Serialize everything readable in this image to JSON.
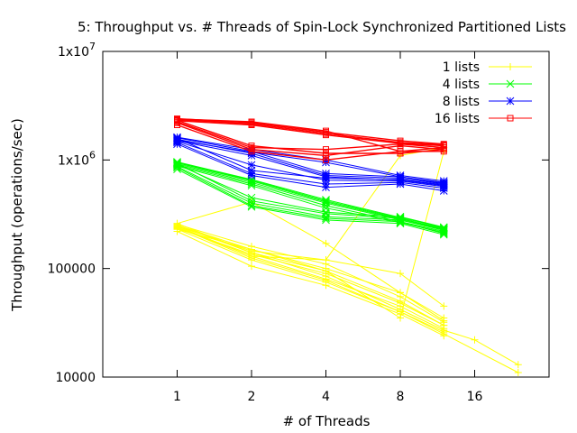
{
  "chart_data": {
    "type": "line",
    "title": "5: Throughput vs. # Threads of Spin-Lock Synchronized Partitioned Lists",
    "xlabel": "# of Threads",
    "ylabel": "Throughput (operations/sec)",
    "x_scale": "log2",
    "y_scale": "log10",
    "x_ticks": [
      {
        "value": 1,
        "label": "1"
      },
      {
        "value": 2,
        "label": "2"
      },
      {
        "value": 4,
        "label": "4"
      },
      {
        "value": 8,
        "label": "8"
      },
      {
        "value": 16,
        "label": "16"
      }
    ],
    "y_ticks": [
      {
        "value": 10000,
        "label": "10000",
        "sup": ""
      },
      {
        "value": 100000,
        "label": "100000",
        "sup": ""
      },
      {
        "value": 1000000,
        "label": "1x10",
        "sup": "6"
      },
      {
        "value": 10000000,
        "label": "1x10",
        "sup": "7"
      }
    ],
    "xlim": [
      0.5,
      32
    ],
    "ylim": [
      10000,
      10000000
    ],
    "grid": false,
    "legend_position": "top-right",
    "series": [
      {
        "name": "1 lists",
        "color": "#ffff00",
        "marker": "plus",
        "runs": [
          {
            "x": [
              1,
              2,
              4,
              8,
              12
            ],
            "y": [
              260000,
              140000,
              95000,
              50000,
              30000
            ]
          },
          {
            "x": [
              1,
              2,
              4,
              8,
              12
            ],
            "y": [
              250000,
              150000,
              100000,
              60000,
              35000
            ]
          },
          {
            "x": [
              1,
              2,
              4,
              8,
              12
            ],
            "y": [
              240000,
              130000,
              80000,
              45000,
              28000
            ]
          },
          {
            "x": [
              1,
              2,
              4,
              8,
              12
            ],
            "y": [
              230000,
              120000,
              75000,
              40000,
              26000
            ]
          },
          {
            "x": [
              1,
              2,
              4,
              8,
              12
            ],
            "y": [
              255000,
              160000,
              110000,
              55000,
              32000
            ]
          },
          {
            "x": [
              1,
              2,
              4,
              8,
              12
            ],
            "y": [
              220000,
              105000,
              70000,
              38000,
              24000
            ]
          },
          {
            "x": [
              1,
              2,
              4,
              8,
              12
            ],
            "y": [
              245000,
              145000,
              120000,
              90000,
              45000
            ]
          },
          {
            "x": [
              1,
              2,
              4,
              8,
              12
            ],
            "y": [
              235000,
              135000,
              90000,
              48000,
              30000
            ]
          },
          {
            "x": [
              1,
              2,
              4,
              8,
              12,
              16,
              24
            ],
            "y": [
              250000,
              140000,
              85000,
              42000,
              27000,
              22000,
              13000
            ]
          },
          {
            "x": [
              1,
              2,
              4,
              8,
              12,
              24
            ],
            "y": [
              240000,
              125000,
              78000,
              40000,
              25000,
              11000
            ]
          },
          {
            "x": [
              1,
              2,
              4,
              8,
              12
            ],
            "y": [
              260000,
              410000,
              170000,
              60000,
              33000
            ]
          },
          {
            "x": [
              1,
              2,
              4,
              8,
              12
            ],
            "y": [
              245000,
              130000,
              120000,
              1100000,
              1300000
            ]
          },
          {
            "x": [
              1,
              2,
              4,
              8,
              12
            ],
            "y": [
              230000,
              150000,
              95000,
              35000,
              1200000
            ]
          }
        ]
      },
      {
        "name": "4 lists",
        "color": "#00ff00",
        "marker": "cross",
        "runs": [
          {
            "x": [
              1,
              2,
              4,
              8,
              12
            ],
            "y": [
              950000,
              650000,
              420000,
              290000,
              230000
            ]
          },
          {
            "x": [
              1,
              2,
              4,
              8,
              12
            ],
            "y": [
              920000,
              620000,
              400000,
              280000,
              225000
            ]
          },
          {
            "x": [
              1,
              2,
              4,
              8,
              12
            ],
            "y": [
              900000,
              600000,
              380000,
              270000,
              220000
            ]
          },
          {
            "x": [
              1,
              2,
              4,
              8,
              12
            ],
            "y": [
              880000,
              580000,
              360000,
              265000,
              215000
            ]
          },
          {
            "x": [
              1,
              2,
              4,
              8,
              12
            ],
            "y": [
              940000,
              640000,
              410000,
              285000,
              235000
            ]
          },
          {
            "x": [
              1,
              2,
              4,
              8,
              12
            ],
            "y": [
              910000,
              450000,
              330000,
              300000,
              240000
            ]
          },
          {
            "x": [
              1,
              2,
              4,
              8,
              12
            ],
            "y": [
              870000,
              400000,
              300000,
              280000,
              230000
            ]
          },
          {
            "x": [
              1,
              2,
              4,
              8,
              12
            ],
            "y": [
              850000,
              380000,
              290000,
              270000,
              210000
            ]
          },
          {
            "x": [
              1,
              2,
              4,
              8,
              12
            ],
            "y": [
              820000,
              370000,
              280000,
              260000,
              205000
            ]
          },
          {
            "x": [
              1,
              2,
              4,
              8,
              12
            ],
            "y": [
              930000,
              420000,
              320000,
              290000,
              225000
            ]
          },
          {
            "x": [
              1,
              2,
              4,
              8,
              12
            ],
            "y": [
              960000,
              660000,
              430000,
              295000,
              238000
            ]
          }
        ]
      },
      {
        "name": "8 lists",
        "color": "#0000ff",
        "marker": "star",
        "runs": [
          {
            "x": [
              1,
              2,
              4,
              8,
              12
            ],
            "y": [
              1600000,
              1200000,
              750000,
              700000,
              620000
            ]
          },
          {
            "x": [
              1,
              2,
              4,
              8,
              12
            ],
            "y": [
              1550000,
              1150000,
              720000,
              680000,
              600000
            ]
          },
          {
            "x": [
              1,
              2,
              4,
              8,
              12
            ],
            "y": [
              1500000,
              1100000,
              700000,
              650000,
              580000
            ]
          },
          {
            "x": [
              1,
              2,
              4,
              8,
              12
            ],
            "y": [
              1450000,
              750000,
              600000,
              620000,
              550000
            ]
          },
          {
            "x": [
              1,
              2,
              4,
              8,
              12
            ],
            "y": [
              1400000,
              720000,
              560000,
              600000,
              520000
            ]
          },
          {
            "x": [
              1,
              2,
              4,
              8,
              12
            ],
            "y": [
              1620000,
              1250000,
              1000000,
              720000,
              640000
            ]
          },
          {
            "x": [
              1,
              2,
              4,
              8,
              12
            ],
            "y": [
              1480000,
              900000,
              650000,
              640000,
              570000
            ]
          },
          {
            "x": [
              1,
              2,
              4,
              8,
              12
            ],
            "y": [
              1520000,
              1180000,
              950000,
              700000,
              610000
            ]
          },
          {
            "x": [
              1,
              2,
              4,
              8,
              12
            ],
            "y": [
              1580000,
              800000,
              680000,
              660000,
              590000
            ]
          }
        ]
      },
      {
        "name": "16 lists",
        "color": "#ff0000",
        "marker": "square",
        "runs": [
          {
            "x": [
              1,
              2,
              4,
              8,
              12
            ],
            "y": [
              2400000,
              2200000,
              1800000,
              1500000,
              1400000
            ]
          },
          {
            "x": [
              1,
              2,
              4,
              8,
              12
            ],
            "y": [
              2350000,
              2150000,
              1750000,
              1450000,
              1380000
            ]
          },
          {
            "x": [
              1,
              2,
              4,
              8,
              12
            ],
            "y": [
              2300000,
              2100000,
              1700000,
              1420000,
              1350000
            ]
          },
          {
            "x": [
              1,
              2,
              4,
              8,
              12
            ],
            "y": [
              2250000,
              1300000,
              1250000,
              1400000,
              1300000
            ]
          },
          {
            "x": [
              1,
              2,
              4,
              8,
              12
            ],
            "y": [
              2200000,
              1250000,
              1100000,
              1350000,
              1250000
            ]
          },
          {
            "x": [
              1,
              2,
              4,
              8,
              12
            ],
            "y": [
              2100000,
              1200000,
              1000000,
              1200000,
              1200000
            ]
          },
          {
            "x": [
              1,
              2,
              4,
              8,
              12
            ],
            "y": [
              2380000,
              2250000,
              1850000,
              1200000,
              1300000
            ]
          },
          {
            "x": [
              1,
              2,
              4,
              8,
              12
            ],
            "y": [
              2320000,
              1350000,
              1150000,
              1150000,
              1250000
            ]
          }
        ]
      }
    ]
  }
}
